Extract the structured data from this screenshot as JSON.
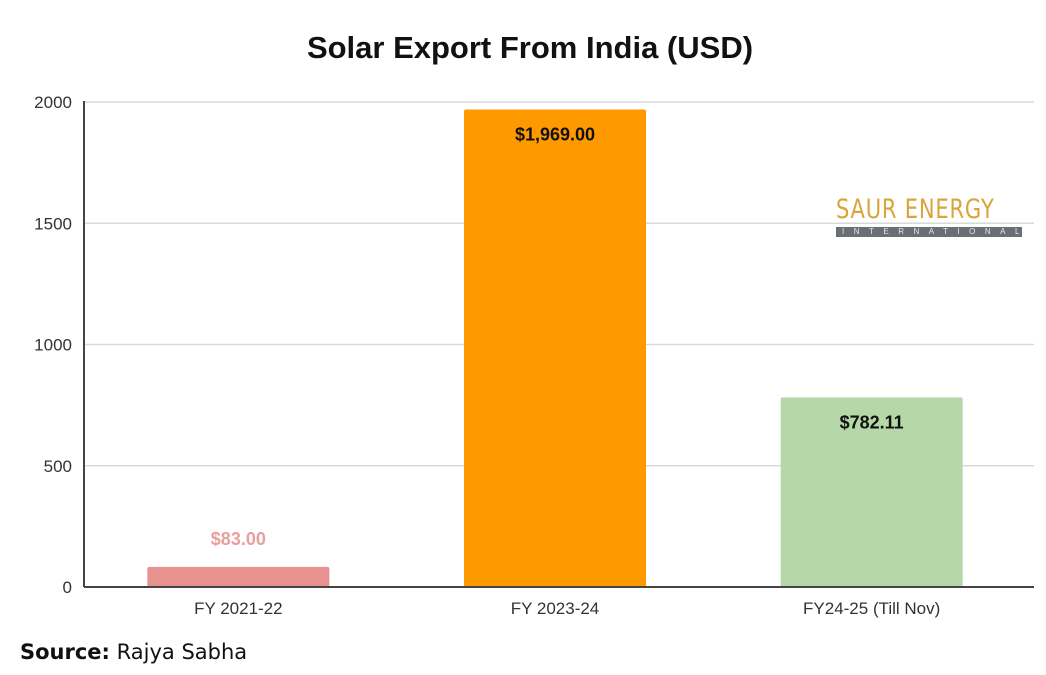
{
  "chart_data": {
    "type": "bar",
    "title": "Solar Export From India (USD)",
    "xlabel": "",
    "ylabel": "",
    "categories": [
      "FY 2021-22",
      "FY 2023-24",
      "FY24-25 (Till Nov)"
    ],
    "values": [
      83.0,
      1969.0,
      782.11
    ],
    "data_labels": [
      "$83.00",
      "$1,969.00",
      "$782.11"
    ],
    "colors": [
      "#e8928f",
      "#ff9900",
      "#b6d7a8"
    ],
    "label_colors": [
      "#e8a09d",
      "#111111",
      "#111111"
    ],
    "ylim": [
      0,
      2000
    ],
    "yticks": [
      0,
      500,
      1000,
      1500,
      2000
    ],
    "grid": true,
    "legend": "none"
  },
  "source": {
    "label": "Source:",
    "value": "Rajya Sabha"
  },
  "logo": {
    "main": "SAUR ENERGY",
    "sub": "INTERNATIONAL"
  }
}
